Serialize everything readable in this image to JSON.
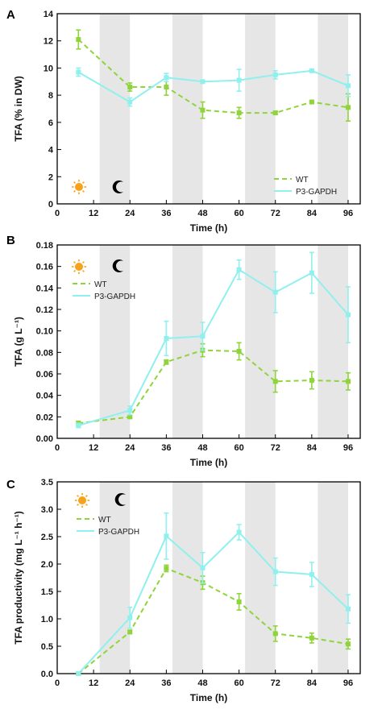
{
  "colors": {
    "wt": "#8fd43a",
    "p3": "#8ff0ee",
    "night_band": "#e6e6e6",
    "sun": "#f7a21b",
    "axis": "#000000"
  },
  "icons": {
    "day": "sun-icon",
    "night": "moon-icon"
  },
  "chart_data": [
    {
      "panel": "A",
      "type": "line",
      "xlabel": "Time (h)",
      "ylabel": "TFA (% in DW)",
      "xlim": [
        0,
        100
      ],
      "ylim": [
        0,
        14
      ],
      "xticks": [
        "0",
        "12",
        "24",
        "36",
        "48",
        "60",
        "72",
        "84",
        "96"
      ],
      "yticks": [
        "0",
        "2",
        "4",
        "6",
        "8",
        "10",
        "12",
        "14"
      ],
      "night_bands": [
        [
          14,
          24
        ],
        [
          38,
          48
        ],
        [
          62,
          72
        ],
        [
          86,
          96
        ]
      ],
      "legend_position": "bottom-right",
      "series": [
        {
          "name": "WT",
          "style": "dashed",
          "x": [
            7,
            24,
            36,
            48,
            60,
            72,
            84,
            96
          ],
          "values": [
            12.1,
            8.6,
            8.6,
            6.9,
            6.7,
            6.7,
            7.5,
            7.1
          ],
          "errors": [
            0.7,
            0.3,
            0.6,
            0.6,
            0.4,
            0.1,
            0.1,
            1.0
          ]
        },
        {
          "name": "P3-GAPDH",
          "style": "solid",
          "x": [
            7,
            24,
            36,
            48,
            60,
            72,
            84,
            96
          ],
          "values": [
            9.7,
            7.5,
            9.3,
            9.0,
            9.1,
            9.5,
            9.8,
            8.7
          ],
          "errors": [
            0.3,
            0.3,
            0.3,
            0.1,
            0.8,
            0.3,
            0.1,
            0.8
          ]
        }
      ]
    },
    {
      "panel": "B",
      "type": "line",
      "xlabel": "Time (h)",
      "ylabel": "TFA (g L⁻¹)",
      "xlim": [
        0,
        100
      ],
      "ylim": [
        0,
        0.18
      ],
      "xticks": [
        "0",
        "12",
        "24",
        "36",
        "48",
        "60",
        "72",
        "84",
        "96"
      ],
      "yticks": [
        "0.00",
        "0.02",
        "0.04",
        "0.06",
        "0.08",
        "0.10",
        "0.12",
        "0.14",
        "0.16",
        "0.18"
      ],
      "night_bands": [
        [
          14,
          24
        ],
        [
          38,
          48
        ],
        [
          62,
          72
        ],
        [
          86,
          96
        ]
      ],
      "legend_position": "top-left",
      "series": [
        {
          "name": "WT",
          "style": "dashed",
          "x": [
            7,
            24,
            36,
            48,
            60,
            72,
            84,
            96
          ],
          "values": [
            0.014,
            0.02,
            0.071,
            0.082,
            0.081,
            0.053,
            0.054,
            0.053
          ],
          "errors": [
            0.002,
            0.001,
            0.002,
            0.006,
            0.008,
            0.01,
            0.008,
            0.008
          ]
        },
        {
          "name": "P3-GAPDH",
          "style": "solid",
          "x": [
            7,
            24,
            36,
            48,
            60,
            72,
            84,
            96
          ],
          "values": [
            0.012,
            0.026,
            0.093,
            0.095,
            0.157,
            0.136,
            0.154,
            0.115
          ],
          "errors": [
            0.002,
            0.004,
            0.016,
            0.013,
            0.009,
            0.019,
            0.019,
            0.026
          ]
        }
      ]
    },
    {
      "panel": "C",
      "type": "line",
      "xlabel": "Time (h)",
      "ylabel": "TFA productivity (mg L⁻¹ h⁻¹)",
      "xlim": [
        0,
        100
      ],
      "ylim": [
        0,
        3.5
      ],
      "xticks": [
        "0",
        "12",
        "24",
        "36",
        "48",
        "60",
        "72",
        "84",
        "96"
      ],
      "yticks": [
        "0.0",
        "0.5",
        "1.0",
        "1.5",
        "2.0",
        "2.5",
        "3.0",
        "3.5"
      ],
      "night_bands": [
        [
          14,
          24
        ],
        [
          38,
          48
        ],
        [
          62,
          72
        ],
        [
          86,
          96
        ]
      ],
      "legend_position": "top-left",
      "series": [
        {
          "name": "WT",
          "style": "dashed",
          "x": [
            7,
            24,
            36,
            48,
            60,
            72,
            84,
            96
          ],
          "values": [
            0.0,
            0.76,
            1.92,
            1.66,
            1.31,
            0.73,
            0.65,
            0.54
          ],
          "errors": [
            0.0,
            0.03,
            0.06,
            0.12,
            0.15,
            0.14,
            0.09,
            0.09
          ]
        },
        {
          "name": "P3-GAPDH",
          "style": "solid",
          "x": [
            7,
            24,
            36,
            48,
            60,
            72,
            84,
            96
          ],
          "values": [
            0.0,
            1.02,
            2.51,
            1.93,
            2.58,
            1.86,
            1.81,
            1.18
          ],
          "errors": [
            0.0,
            0.19,
            0.42,
            0.28,
            0.14,
            0.25,
            0.22,
            0.26
          ]
        }
      ]
    }
  ]
}
